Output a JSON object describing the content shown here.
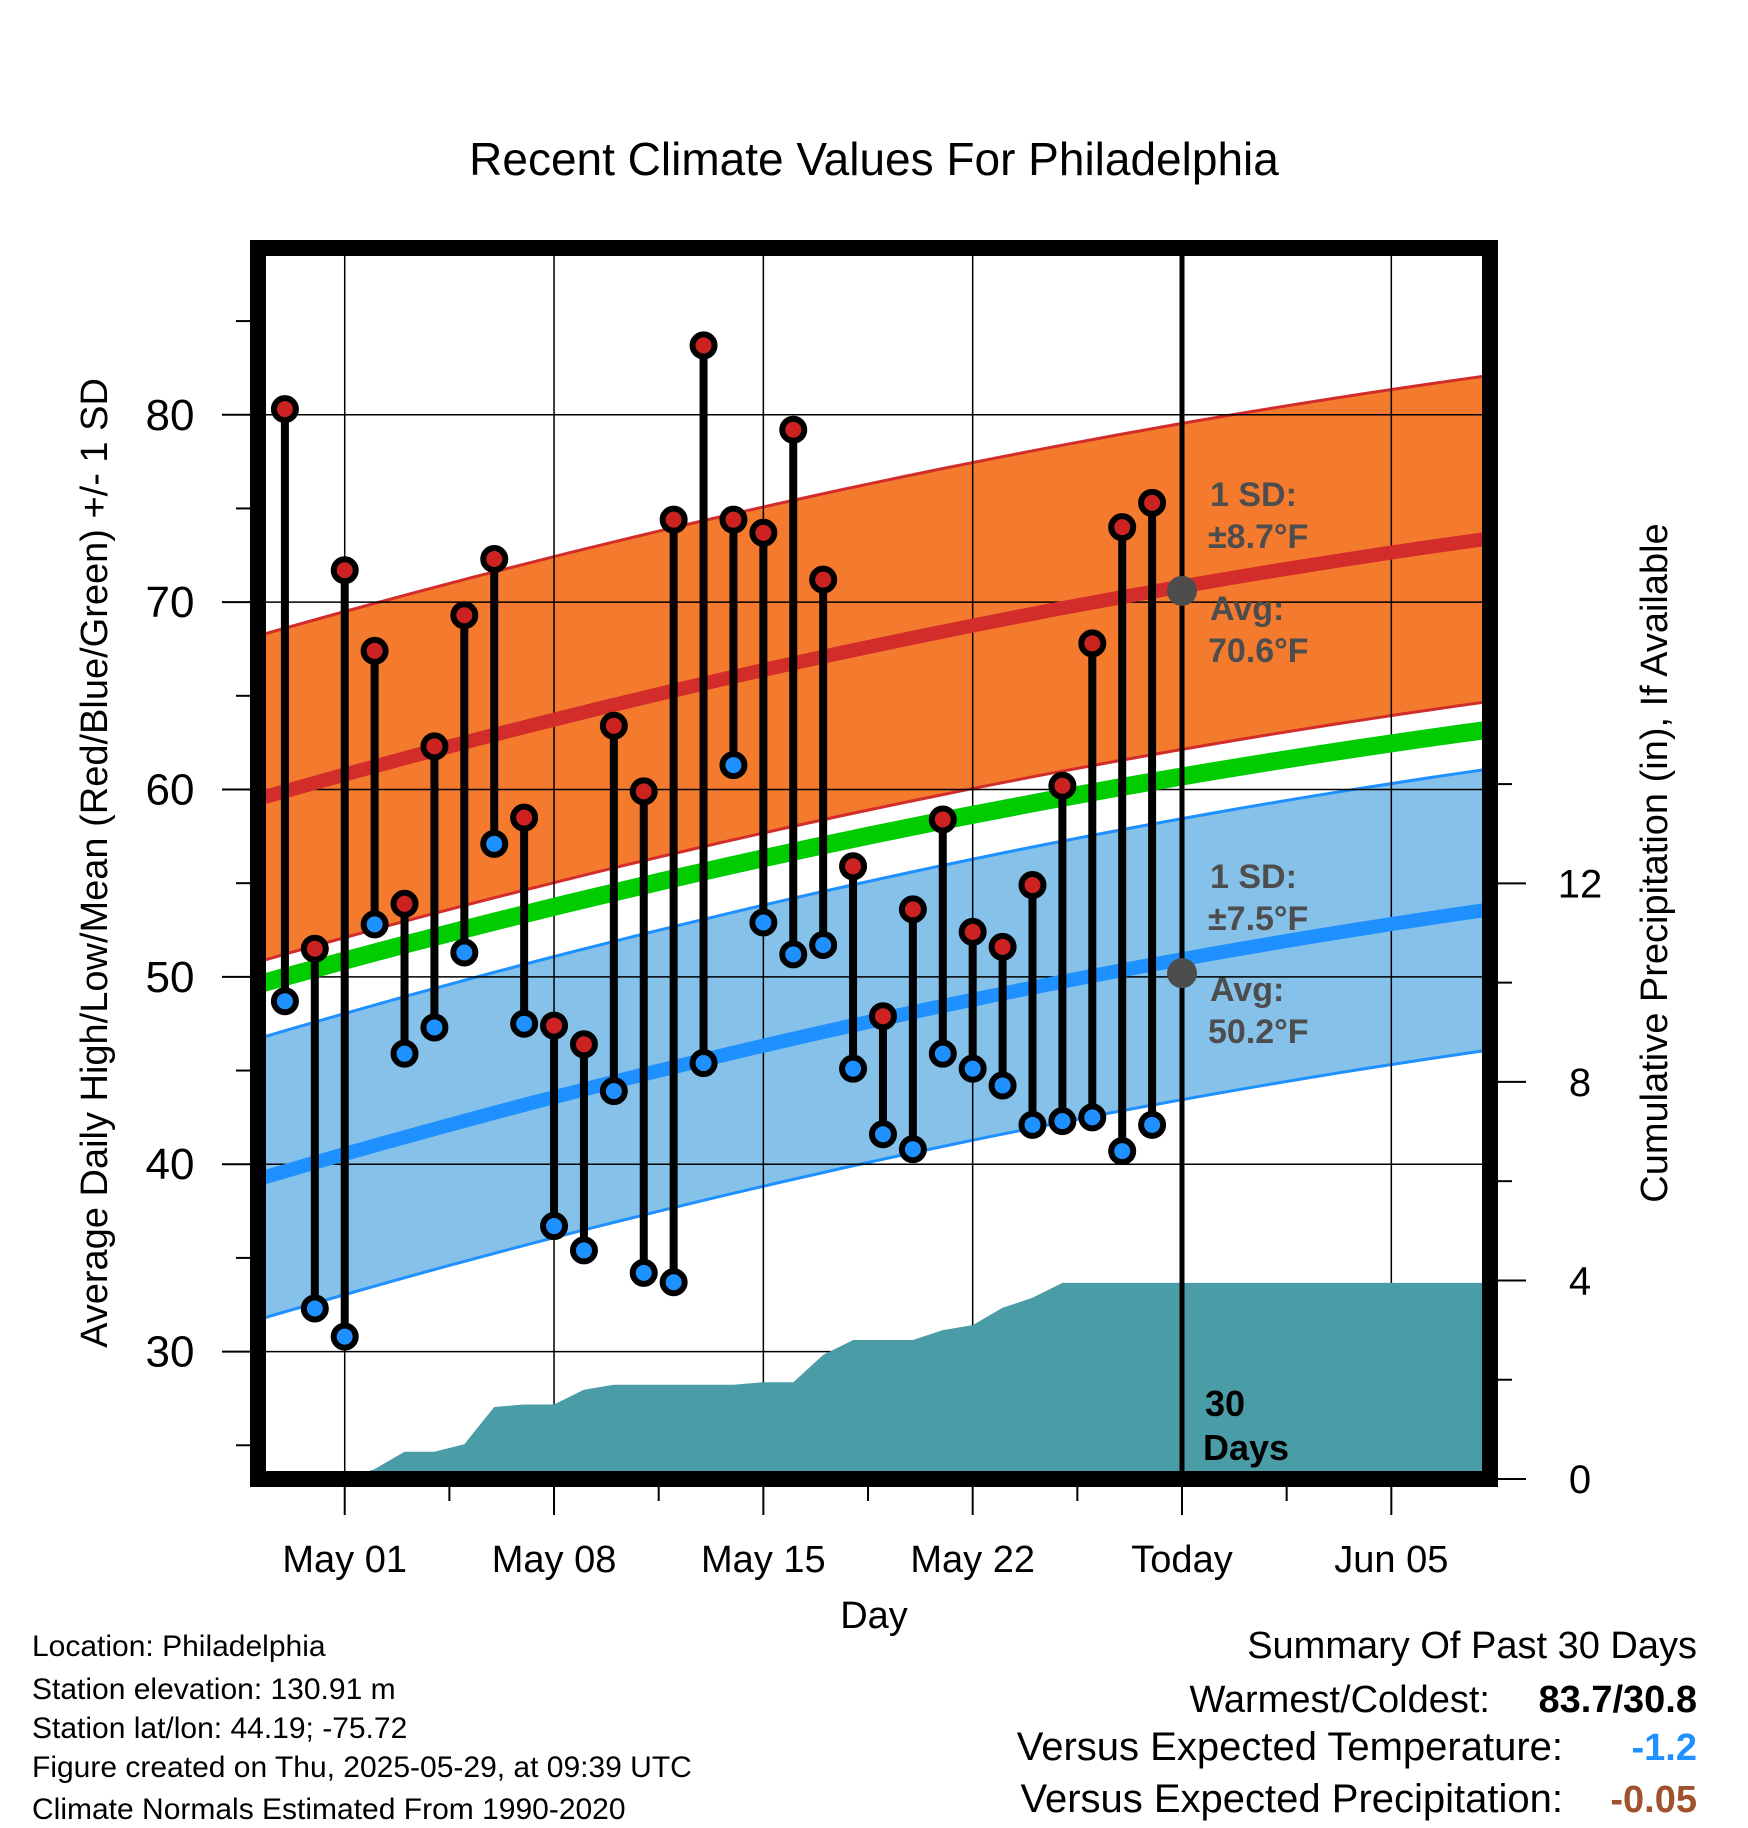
{
  "chart_data": {
    "type": "line",
    "title": "Recent Climate Values For Philadelphia",
    "xlabel": "Day",
    "ylabel_left": "Average Daily High/Low/Mean (Red/Blue/Green) +/- 1 SD",
    "ylabel_right": "Cumulative Precipitation (in), If Available",
    "x_tick_labels": [
      "May 01",
      "May 08",
      "May 15",
      "May 22",
      "Today",
      "Jun 05"
    ],
    "x_tick_days": [
      1,
      8,
      15,
      22,
      29,
      36
    ],
    "xlim": [
      -1.9,
      39.3
    ],
    "y_left_ticks": [
      30,
      40,
      50,
      60,
      70,
      80
    ],
    "ylim_left": [
      23.2,
      88.9
    ],
    "y_right_ticks": [
      0,
      4,
      8,
      12
    ],
    "ylim_right": [
      0,
      24.8
    ],
    "today_day": 29,
    "normal_high": {
      "start": 59.5,
      "end": 73.4,
      "sd": 8.7,
      "avg_today": 70.6
    },
    "normal_low": {
      "start": 39.2,
      "end": 53.6,
      "sd": 7.5,
      "avg_today": 50.2
    },
    "normal_mean": {
      "start": 49.6,
      "end": 63.2
    },
    "daily": [
      {
        "day": -1,
        "high": 80.3,
        "low": 48.7
      },
      {
        "day": 0,
        "high": 51.5,
        "low": 32.3
      },
      {
        "day": 1,
        "high": 71.7,
        "low": 30.8
      },
      {
        "day": 2,
        "high": 67.4,
        "low": 52.8
      },
      {
        "day": 3,
        "high": 53.9,
        "low": 45.9
      },
      {
        "day": 4,
        "high": 62.3,
        "low": 47.3
      },
      {
        "day": 5,
        "high": 69.3,
        "low": 51.3
      },
      {
        "day": 6,
        "high": 72.3,
        "low": 57.1
      },
      {
        "day": 7,
        "high": 58.5,
        "low": 47.5
      },
      {
        "day": 8,
        "high": 47.4,
        "low": 36.7
      },
      {
        "day": 9,
        "high": 46.4,
        "low": 35.4
      },
      {
        "day": 10,
        "high": 63.4,
        "low": 43.9
      },
      {
        "day": 11,
        "high": 59.9,
        "low": 34.2
      },
      {
        "day": 12,
        "high": 74.4,
        "low": 33.7
      },
      {
        "day": 13,
        "high": 83.7,
        "low": 45.4
      },
      {
        "day": 14,
        "high": 74.4,
        "low": 61.3
      },
      {
        "day": 15,
        "high": 73.7,
        "low": 52.9
      },
      {
        "day": 16,
        "high": 79.2,
        "low": 51.2
      },
      {
        "day": 17,
        "high": 71.2,
        "low": 51.7
      },
      {
        "day": 18,
        "high": 55.9,
        "low": 45.1
      },
      {
        "day": 19,
        "high": 47.9,
        "low": 41.6
      },
      {
        "day": 20,
        "high": 53.6,
        "low": 40.8
      },
      {
        "day": 21,
        "high": 58.4,
        "low": 45.9
      },
      {
        "day": 22,
        "high": 52.4,
        "low": 45.1
      },
      {
        "day": 23,
        "high": 51.6,
        "low": 44.2
      },
      {
        "day": 24,
        "high": 54.9,
        "low": 42.1
      },
      {
        "day": 25,
        "high": 60.2,
        "low": 42.3
      },
      {
        "day": 26,
        "high": 67.8,
        "low": 42.5
      },
      {
        "day": 27,
        "high": 74.0,
        "low": 40.7
      },
      {
        "day": 28,
        "high": 75.3,
        "low": 42.1
      }
    ],
    "cumulative_precip": [
      {
        "day": 1,
        "value": 0.0
      },
      {
        "day": 2,
        "value": 0.2
      },
      {
        "day": 3,
        "value": 0.55
      },
      {
        "day": 4,
        "value": 0.55
      },
      {
        "day": 5,
        "value": 0.7
      },
      {
        "day": 6,
        "value": 1.45
      },
      {
        "day": 7,
        "value": 1.5
      },
      {
        "day": 8,
        "value": 1.5
      },
      {
        "day": 9,
        "value": 1.8
      },
      {
        "day": 10,
        "value": 1.9
      },
      {
        "day": 11,
        "value": 1.9
      },
      {
        "day": 12,
        "value": 1.9
      },
      {
        "day": 13,
        "value": 1.9
      },
      {
        "day": 14,
        "value": 1.9
      },
      {
        "day": 15,
        "value": 1.95
      },
      {
        "day": 16,
        "value": 1.95
      },
      {
        "day": 17,
        "value": 2.5
      },
      {
        "day": 18,
        "value": 2.8
      },
      {
        "day": 19,
        "value": 2.8
      },
      {
        "day": 20,
        "value": 2.8
      },
      {
        "day": 21,
        "value": 3.0
      },
      {
        "day": 22,
        "value": 3.1
      },
      {
        "day": 23,
        "value": 3.45
      },
      {
        "day": 24,
        "value": 3.65
      },
      {
        "day": 25,
        "value": 3.95
      },
      {
        "day": 26,
        "value": 3.95
      },
      {
        "day": 29,
        "value": 3.95
      },
      {
        "day": 39.3,
        "value": 3.95
      }
    ],
    "annotations": {
      "high_sd_label": "1 SD:",
      "high_sd_value": "±8.7°F",
      "high_avg_label": "Avg:",
      "high_avg_value": "70.6°F",
      "low_sd_label": "1 SD:",
      "low_sd_value": "±7.5°F",
      "low_avg_label": "Avg:",
      "low_avg_value": "50.2°F",
      "period_number": "30",
      "period_unit": "Days"
    },
    "colors": {
      "high_band": "#F47A2E",
      "high_line": "#D22D2B",
      "low_band": "#85C1E8",
      "low_line": "#1E90FF",
      "mean_line": "#00CC00",
      "precip_fill": "#4A9CA6",
      "high_marker": "#CC2222",
      "low_marker": "#1E90FF",
      "annotation_text": "#4D4D4D",
      "avg_marker": "#4D4D4D"
    }
  },
  "info": {
    "location": "Location: Philadelphia",
    "elevation": "Station elevation: 130.91 m",
    "latlon": "Station lat/lon: 44.19; -75.72",
    "created": "Figure created on Thu, 2025-05-29, at 09:39 UTC",
    "normals": "Climate Normals Estimated From 1990-2020"
  },
  "summary": {
    "heading": "Summary Of Past 30 Days",
    "warm_cold_label": "Warmest/Coldest:",
    "warm_cold_value": "83.7/30.8",
    "temp_label": "Versus Expected Temperature:",
    "temp_value": "-1.2",
    "temp_color": "#1E90FF",
    "precip_label": "Versus Expected Precipitation:",
    "precip_value": "-0.05",
    "precip_color": "#A0522D"
  }
}
